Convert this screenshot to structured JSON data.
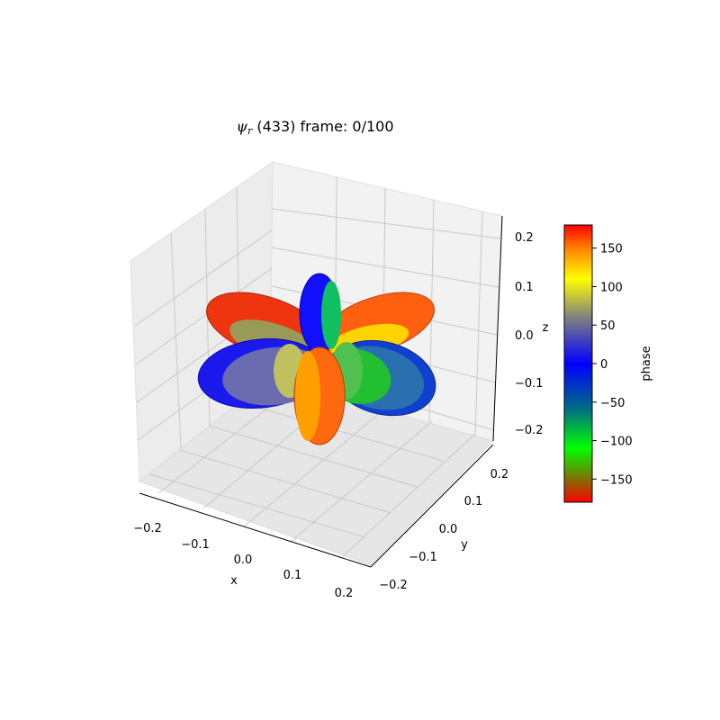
{
  "chart_data": {
    "type": "surface3d",
    "title": {
      "symbol": "ψ",
      "subscript": "r",
      "rest": " (433) frame: 0/100"
    },
    "xlabel": "x",
    "ylabel": "y",
    "zlabel": "z",
    "xticks": [
      "−0.2",
      "−0.1",
      "0.0",
      "0.1",
      "0.2"
    ],
    "yticks": [
      "−0.2",
      "−0.1",
      "0.0",
      "0.1",
      "0.2"
    ],
    "zticks": [
      "−0.2",
      "−0.1",
      "0.0",
      "0.1",
      "0.2"
    ],
    "colorbar": {
      "label": "phase",
      "ticks": [
        "−150",
        "−100",
        "−50",
        "0",
        "50",
        "100",
        "150"
      ],
      "tick_values": [
        -150,
        -100,
        -50,
        0,
        50,
        100,
        150
      ],
      "range": [
        -180,
        180
      ],
      "stops": [
        {
          "value": -180,
          "color": "#ff0000"
        },
        {
          "value": -150,
          "color": "#807000"
        },
        {
          "value": -110,
          "color": "#00ff00"
        },
        {
          "value": -60,
          "color": "#007080"
        },
        {
          "value": 0,
          "color": "#0000ff"
        },
        {
          "value": 60,
          "color": "#808080"
        },
        {
          "value": 110,
          "color": "#ffff00"
        },
        {
          "value": 150,
          "color": "#ff8000"
        },
        {
          "value": 180,
          "color": "#ff0000"
        }
      ]
    },
    "lobes": [
      {
        "name": "upper-left-outer",
        "color": "#ee3510",
        "shade": "#c42808"
      },
      {
        "name": "upper-left-inner",
        "color": "#8a8a60",
        "shade": "#707050"
      },
      {
        "name": "left-outer",
        "color": "#1a1aee",
        "shade": "#1010b0"
      },
      {
        "name": "left-inner",
        "color": "#6b6bb0",
        "shade": "#505090"
      },
      {
        "name": "upper-right-outer",
        "color": "#ff6010",
        "shade": "#d84a08"
      },
      {
        "name": "upper-right-inner",
        "color": "#ffd000",
        "shade": "#e0b000"
      },
      {
        "name": "right-outer",
        "color": "#1040d0",
        "shade": "#0830a0"
      },
      {
        "name": "right-inner",
        "color": "#20c030",
        "shade": "#109020"
      },
      {
        "name": "top-lobe",
        "color": "#1010ff",
        "shade": "#0a0ab0"
      },
      {
        "name": "top-lobe-inner",
        "color": "#10c060",
        "shade": "#0a9040"
      },
      {
        "name": "bottom-lobe",
        "color": "#ff6a10",
        "shade": "#e04008"
      },
      {
        "name": "bottom-lobe-inner",
        "color": "#ffa000",
        "shade": "#d08000"
      },
      {
        "name": "center-left-small",
        "color": "#c0c060",
        "shade": "#909040"
      },
      {
        "name": "center-right-small",
        "color": "#50c050",
        "shade": "#309030"
      }
    ]
  }
}
